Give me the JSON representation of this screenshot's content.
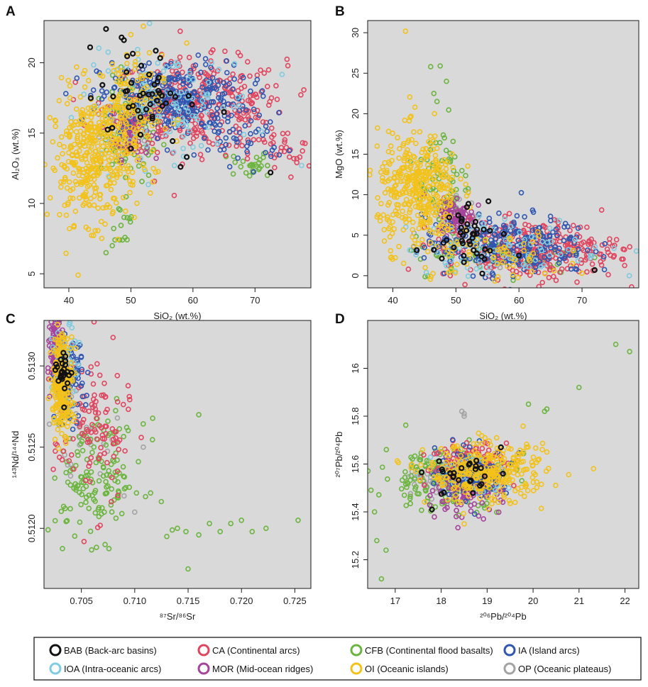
{
  "legend": [
    {
      "key": "BAB",
      "label": "BAB (Back-arc basins)",
      "color": "#111111"
    },
    {
      "key": "CA",
      "label": "CA (Continental arcs)",
      "color": "#e0455f"
    },
    {
      "key": "CFB",
      "label": "CFB (Continental flood basalts)",
      "color": "#6bb53f"
    },
    {
      "key": "IA",
      "label": "IA (Island arcs)",
      "color": "#2f56b0"
    },
    {
      "key": "IOA",
      "label": "IOA (Intra-oceanic arcs)",
      "color": "#7fcbe0"
    },
    {
      "key": "MOR",
      "label": "MOR (Mid-ocean ridges)",
      "color": "#a6449b"
    },
    {
      "key": "OI",
      "label": "OI (Oceanic islands)",
      "color": "#f2c21b"
    },
    {
      "key": "OP",
      "label": "OP (Oceanic plateaus)",
      "color": "#a3a3a3"
    }
  ],
  "chart_data": [
    {
      "panel": "A",
      "type": "scatter",
      "xlabel": "SiO₂ (wt.%)",
      "ylabel": "Al₂O₃ (wt.%)",
      "xlim": [
        36,
        79
      ],
      "ylim": [
        4,
        23
      ],
      "xticks": [
        40,
        50,
        60,
        70
      ],
      "yticks": [
        5,
        10,
        15,
        20
      ],
      "series": [
        {
          "key": "OI",
          "clouds": [
            {
              "cx": 44,
              "cy": 13.2,
              "sx": 3.5,
              "sy": 2.3,
              "n": 380
            },
            {
              "cx": 49,
              "cy": 16.5,
              "sx": 3,
              "sy": 2,
              "n": 140
            }
          ],
          "points": [
            [
              41.5,
              4.9
            ],
            [
              37.5,
              12.5
            ],
            [
              38.5,
              9.2
            ],
            [
              52,
              22.6
            ],
            [
              59,
              21.4
            ],
            [
              50,
              22
            ]
          ]
        },
        {
          "key": "CFB",
          "clouds": [
            {
              "cx": 50,
              "cy": 15.2,
              "sx": 2.5,
              "sy": 1.8,
              "n": 90
            },
            {
              "cx": 69,
              "cy": 12.8,
              "sx": 1.6,
              "sy": 0.5,
              "n": 25
            },
            {
              "cx": 48.5,
              "cy": 8.5,
              "sx": 1.2,
              "sy": 1.0,
              "n": 14
            }
          ],
          "points": [
            [
              46,
              6.5
            ],
            [
              47,
              7.0
            ],
            [
              72,
              12
            ]
          ]
        },
        {
          "key": "MOR",
          "clouds": [
            {
              "cx": 50,
              "cy": 15.2,
              "sx": 1.5,
              "sy": 1.0,
              "n": 90
            }
          ],
          "points": []
        },
        {
          "key": "CA",
          "clouds": [
            {
              "cx": 61,
              "cy": 17,
              "sx": 7,
              "sy": 1.6,
              "n": 340
            },
            {
              "cx": 74,
              "cy": 13.5,
              "sx": 2.5,
              "sy": 0.9,
              "n": 30
            }
          ],
          "points": []
        },
        {
          "key": "IA",
          "clouds": [
            {
              "cx": 57,
              "cy": 17.5,
              "sx": 6,
              "sy": 1.3,
              "n": 300
            },
            {
              "cx": 68,
              "cy": 14.6,
              "sx": 3.5,
              "sy": 0.9,
              "n": 40
            }
          ],
          "points": []
        },
        {
          "key": "IOA",
          "clouds": [
            {
              "cx": 56,
              "cy": 17,
              "sx": 7,
              "sy": 1.8,
              "n": 120
            }
          ],
          "points": [
            [
              77.5,
              12.7
            ],
            [
              53,
              22.8
            ],
            [
              60,
              14
            ]
          ]
        },
        {
          "key": "OP",
          "clouds": [
            {
              "cx": 50,
              "cy": 15.5,
              "sx": 2.5,
              "sy": 1.5,
              "n": 18
            }
          ],
          "points": [
            [
              72,
              12.7
            ],
            [
              65,
              16.7
            ]
          ]
        },
        {
          "key": "BAB",
          "clouds": [
            {
              "cx": 52,
              "cy": 17.8,
              "sx": 3.5,
              "sy": 1.8,
              "n": 45
            }
          ],
          "points": [
            [
              46,
              22.4
            ],
            [
              48.5,
              21.8
            ],
            [
              58,
              12.6
            ],
            [
              72.5,
              12.2
            ],
            [
              59,
              13.3
            ],
            [
              65,
              16.5
            ]
          ]
        }
      ]
    },
    {
      "panel": "B",
      "type": "scatter",
      "xlabel": "SiO₂ (wt.%)",
      "ylabel": "MgO (wt.%)",
      "xlim": [
        36,
        79
      ],
      "ylim": [
        -1.5,
        31.5
      ],
      "xticks": [
        40,
        50,
        60,
        70
      ],
      "yticks": [
        0,
        5,
        10,
        15,
        20,
        25,
        30
      ],
      "series": [
        {
          "key": "OI",
          "clouds": [
            {
              "cx": 44,
              "cy": 10.5,
              "sx": 3.2,
              "sy": 3.5,
              "n": 380
            },
            {
              "cx": 55,
              "cy": 2.5,
              "sx": 6,
              "sy": 1.5,
              "n": 60
            }
          ],
          "points": [
            [
              42,
              30.2
            ],
            [
              37.5,
              16
            ],
            [
              38.5,
              7.5
            ],
            [
              43.5,
              20.8
            ],
            [
              62,
              0.5
            ],
            [
              70,
              0.3
            ]
          ]
        },
        {
          "key": "CFB",
          "clouds": [
            {
              "cx": 48,
              "cy": 12,
              "sx": 2.0,
              "sy": 4,
              "n": 70
            },
            {
              "cx": 57,
              "cy": 2.5,
              "sx": 7,
              "sy": 1.2,
              "n": 60
            }
          ],
          "points": [
            [
              46,
              25.8
            ],
            [
              47.5,
              25.9
            ],
            [
              46.5,
              22.5
            ],
            [
              47,
              21.5
            ],
            [
              48.5,
              24
            ]
          ]
        },
        {
          "key": "MOR",
          "clouds": [
            {
              "cx": 50,
              "cy": 7.5,
              "sx": 1.5,
              "sy": 1.2,
              "n": 90
            }
          ],
          "points": []
        },
        {
          "key": "CA",
          "clouds": [
            {
              "cx": 62,
              "cy": 3.2,
              "sx": 7,
              "sy": 1.8,
              "n": 320
            }
          ],
          "points": []
        },
        {
          "key": "IA",
          "clouds": [
            {
              "cx": 58,
              "cy": 3.8,
              "sx": 6.5,
              "sy": 1.8,
              "n": 260
            }
          ],
          "points": []
        },
        {
          "key": "IOA",
          "clouds": [
            {
              "cx": 58,
              "cy": 3.5,
              "sx": 8,
              "sy": 1.8,
              "n": 90
            }
          ],
          "points": [
            [
              77.5,
              0
            ]
          ]
        },
        {
          "key": "OP",
          "clouds": [
            {
              "cx": 50,
              "cy": 7.5,
              "sx": 2,
              "sy": 1.5,
              "n": 18
            }
          ],
          "points": [
            [
              66,
              6.8
            ],
            [
              57,
              1
            ]
          ]
        },
        {
          "key": "BAB",
          "clouds": [
            {
              "cx": 52,
              "cy": 6,
              "sx": 3,
              "sy": 2.5,
              "n": 40
            }
          ],
          "points": [
            [
              46.5,
              3.2
            ],
            [
              60,
              2.5
            ],
            [
              72,
              0.7
            ]
          ]
        }
      ]
    },
    {
      "panel": "C",
      "type": "scatter",
      "xlabel": "⁸⁷Sr/⁸⁶Sr",
      "ylabel": "¹⁴³Nd/¹⁴⁴Nd",
      "xlim": [
        0.7015,
        0.7265
      ],
      "ylim": [
        0.51163,
        0.51328
      ],
      "xticks": [
        0.705,
        0.71,
        0.715,
        0.72,
        0.725
      ],
      "yticks": [
        0.512,
        0.5125,
        0.513
      ],
      "xtick_labels": [
        "0.705",
        "0.710",
        "0.715",
        "0.720",
        "0.725"
      ],
      "ytick_labels": [
        "0.5120",
        "0.5125",
        "0.5130"
      ],
      "series": [
        {
          "key": "CFB",
          "clouds": [
            {
              "cx": 0.7065,
              "cy": 0.5123,
              "sx": 0.0022,
              "sy": 0.00018,
              "n": 150
            }
          ],
          "points": [
            [
              0.7253,
              0.51205
            ],
            [
              0.7223,
              0.512
            ],
            [
              0.721,
              0.51198
            ],
            [
              0.72,
              0.51205
            ],
            [
              0.719,
              0.51203
            ],
            [
              0.718,
              0.51198
            ],
            [
              0.717,
              0.51203
            ],
            [
              0.716,
              0.51196
            ],
            [
              0.7148,
              0.51198
            ],
            [
              0.714,
              0.512
            ],
            [
              0.713,
              0.51195
            ],
            [
              0.716,
              0.5127
            ],
            [
              0.715,
              0.51175
            ]
          ]
        },
        {
          "key": "CA",
          "clouds": [
            {
              "cx": 0.706,
              "cy": 0.51262,
              "sx": 0.0018,
              "sy": 0.00025,
              "n": 120
            }
          ],
          "points": []
        },
        {
          "key": "IA",
          "clouds": [
            {
              "cx": 0.7038,
              "cy": 0.5129,
              "sx": 0.0007,
              "sy": 0.00012,
              "n": 100
            }
          ],
          "points": []
        },
        {
          "key": "IOA",
          "clouds": [
            {
              "cx": 0.7035,
              "cy": 0.513,
              "sx": 0.0006,
              "sy": 0.00012,
              "n": 50
            }
          ],
          "points": []
        },
        {
          "key": "MOR",
          "clouds": [
            {
              "cx": 0.7027,
              "cy": 0.51308,
              "sx": 0.0003,
              "sy": 0.0001,
              "n": 160
            }
          ],
          "points": [
            [
              0.7025,
              0.51323
            ]
          ]
        },
        {
          "key": "OI",
          "clouds": [
            {
              "cx": 0.7032,
              "cy": 0.5129,
              "sx": 0.0005,
              "sy": 0.00015,
              "n": 240
            }
          ],
          "points": []
        },
        {
          "key": "OP",
          "clouds": [
            {
              "cx": 0.7045,
              "cy": 0.5126,
              "sx": 0.0013,
              "sy": 0.00013,
              "n": 25
            }
          ],
          "points": [
            [
              0.7108,
              0.5125
            ],
            [
              0.709,
              0.5122
            ],
            [
              0.71,
              0.5121
            ]
          ]
        },
        {
          "key": "BAB",
          "clouds": [
            {
              "cx": 0.7033,
              "cy": 0.51298,
              "sx": 0.0004,
              "sy": 8e-05,
              "n": 25
            }
          ],
          "points": []
        }
      ]
    },
    {
      "panel": "D",
      "type": "scatter",
      "xlabel": "²⁰⁶Pb/²⁰⁴Pb",
      "ylabel": "²⁰⁷Pb/²⁰⁴Pb",
      "xlim": [
        16.4,
        22.3
      ],
      "ylim": [
        15.08,
        16.2
      ],
      "xticks": [
        17,
        18,
        19,
        20,
        21,
        22
      ],
      "yticks": [
        15.2,
        15.4,
        15.6,
        15.8,
        16.0
      ],
      "series": [
        {
          "key": "CFB",
          "clouds": [
            {
              "cx": 18.1,
              "cy": 15.55,
              "sx": 0.7,
              "sy": 0.07,
              "n": 180
            }
          ],
          "points": [
            [
              21.8,
              16.1
            ],
            [
              22.1,
              16.07
            ],
            [
              21.0,
              15.92
            ],
            [
              20.3,
              15.83
            ],
            [
              20.25,
              15.82
            ],
            [
              19.9,
              15.85
            ],
            [
              16.6,
              15.28
            ],
            [
              16.7,
              15.12
            ],
            [
              16.8,
              15.24
            ],
            [
              16.55,
              15.4
            ]
          ]
        },
        {
          "key": "CA",
          "clouds": [
            {
              "cx": 18.7,
              "cy": 15.6,
              "sx": 0.45,
              "sy": 0.05,
              "n": 130
            }
          ],
          "points": []
        },
        {
          "key": "IA",
          "clouds": [
            {
              "cx": 18.7,
              "cy": 15.56,
              "sx": 0.4,
              "sy": 0.05,
              "n": 110
            }
          ],
          "points": []
        },
        {
          "key": "IOA",
          "clouds": [
            {
              "cx": 18.6,
              "cy": 15.55,
              "sx": 0.4,
              "sy": 0.05,
              "n": 40
            }
          ],
          "points": []
        },
        {
          "key": "MOR",
          "clouds": [
            {
              "cx": 18.5,
              "cy": 15.5,
              "sx": 0.4,
              "sy": 0.05,
              "n": 160
            }
          ],
          "points": []
        },
        {
          "key": "OI",
          "clouds": [
            {
              "cx": 19.0,
              "cy": 15.56,
              "sx": 0.65,
              "sy": 0.06,
              "n": 300
            }
          ],
          "points": [
            [
              20.3,
              15.65
            ],
            [
              20.2,
              15.66
            ],
            [
              18.5,
              15.35
            ]
          ]
        },
        {
          "key": "OP",
          "clouds": [
            {
              "cx": 17.8,
              "cy": 15.52,
              "sx": 0.3,
              "sy": 0.04,
              "n": 30
            }
          ],
          "points": [
            [
              18.45,
              15.82
            ],
            [
              18.5,
              15.81
            ],
            [
              18.5,
              15.8
            ]
          ]
        },
        {
          "key": "BAB",
          "clouds": [
            {
              "cx": 18.5,
              "cy": 15.55,
              "sx": 0.4,
              "sy": 0.05,
              "n": 25
            }
          ],
          "points": [
            [
              19.3,
              15.67
            ],
            [
              17.8,
              15.41
            ]
          ]
        }
      ]
    }
  ]
}
